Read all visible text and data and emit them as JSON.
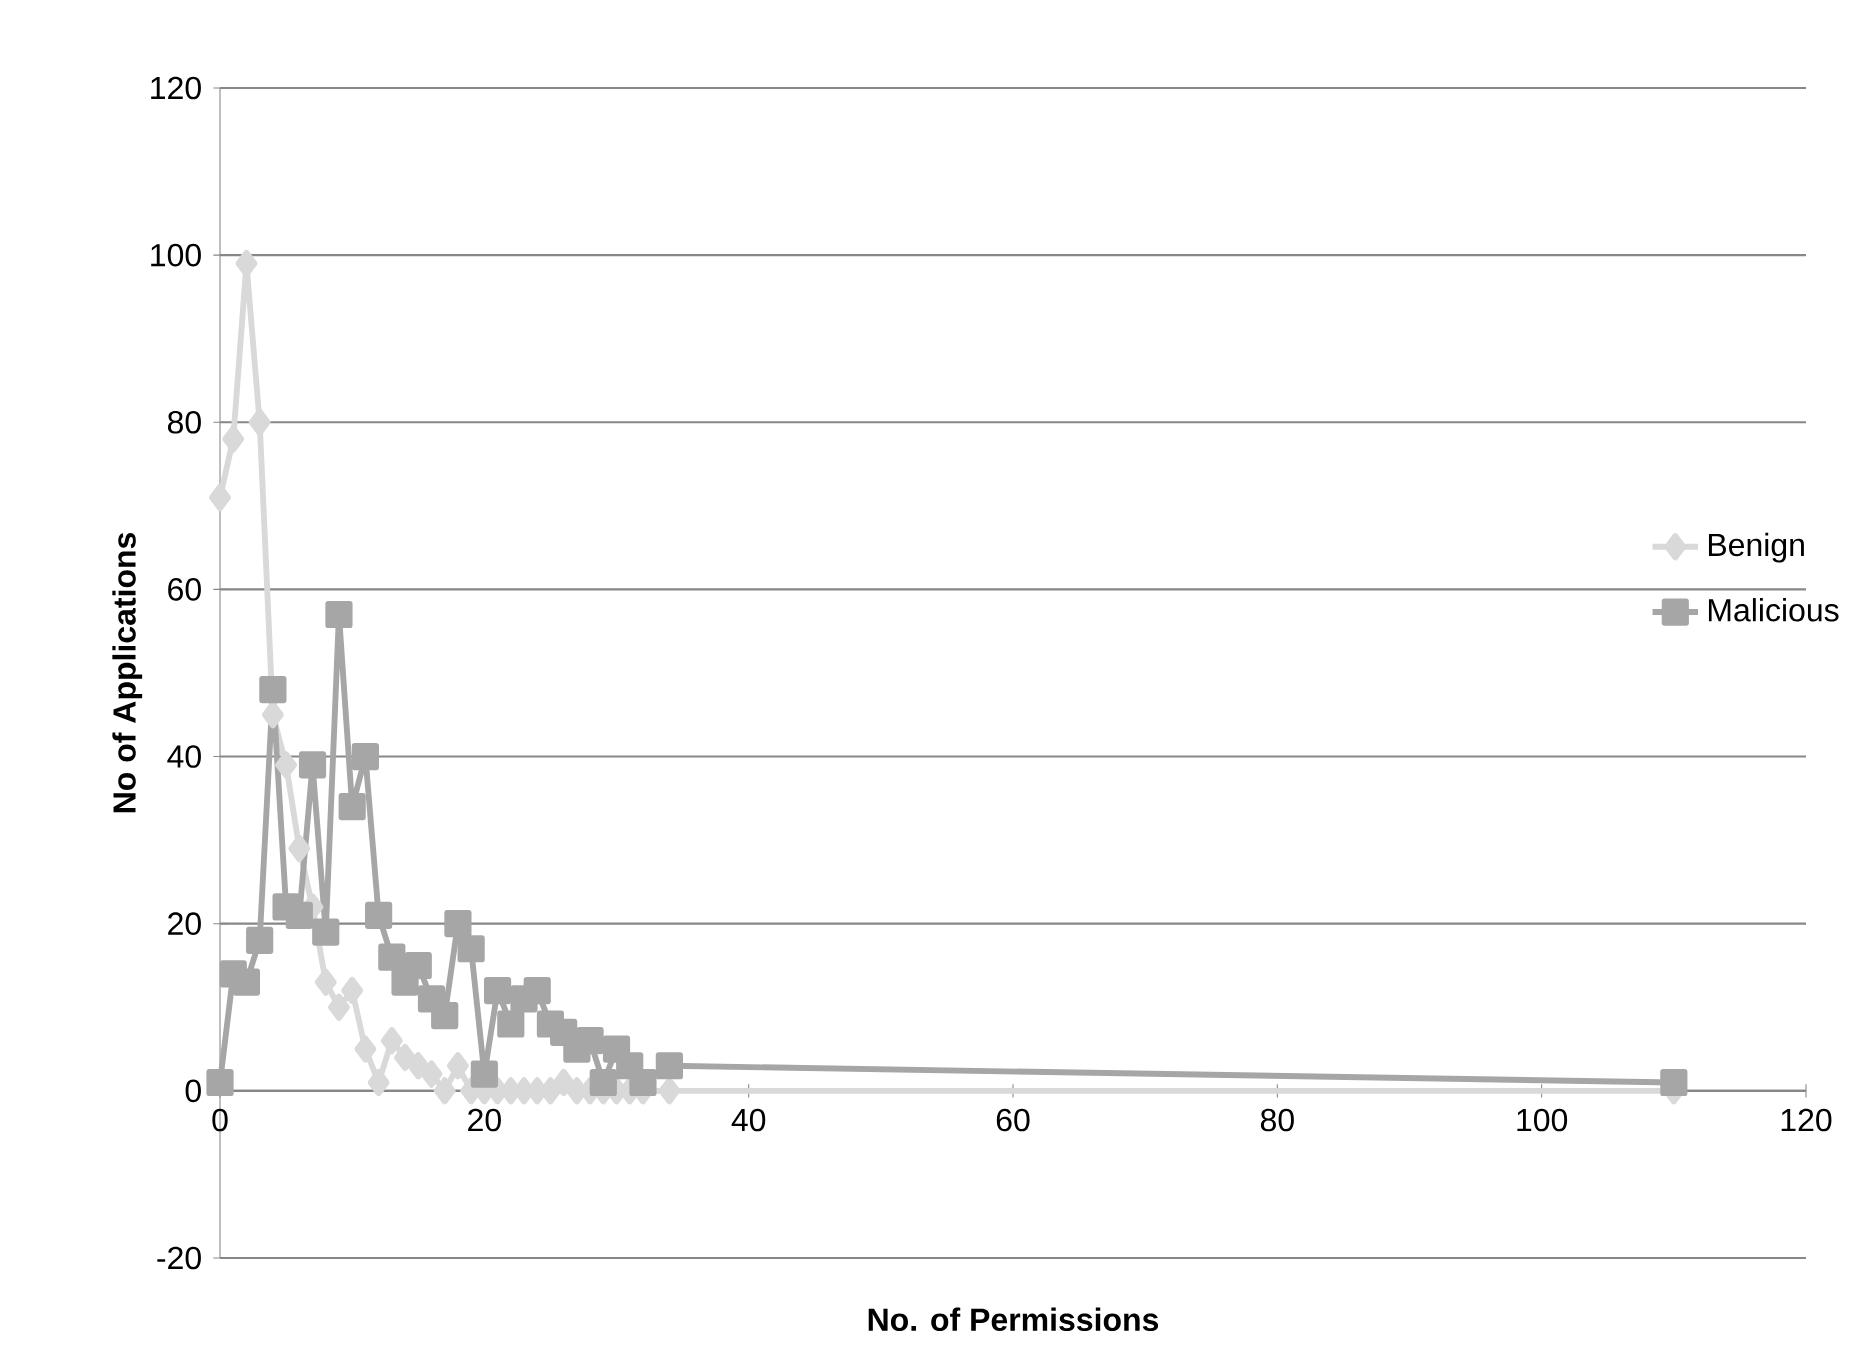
{
  "chart_data": {
    "type": "line",
    "xlabel": "No. of Permissions",
    "ylabel": "No of Applications",
    "xlim": [
      0,
      120
    ],
    "ylim": [
      -20,
      120
    ],
    "xticks": [
      0,
      20,
      40,
      60,
      80,
      100,
      120
    ],
    "yticks": [
      -20,
      0,
      20,
      40,
      60,
      80,
      100,
      120
    ],
    "grid": "y",
    "legend": "right",
    "line_style": "solid",
    "series": [
      {
        "name": "Benign",
        "color": "#d9d9d9",
        "marker": "diamond",
        "x": [
          0,
          1,
          2,
          3,
          4,
          5,
          6,
          7,
          8,
          9,
          10,
          11,
          12,
          13,
          14,
          15,
          16,
          17,
          18,
          19,
          20,
          21,
          22,
          23,
          24,
          25,
          26,
          27,
          28,
          29,
          30,
          31,
          32,
          34,
          110
        ],
        "values": [
          71,
          78,
          99,
          80,
          45,
          39,
          29,
          22,
          13,
          10,
          12,
          5,
          1,
          6,
          4,
          3,
          2,
          0,
          3,
          0,
          0,
          0,
          0,
          0,
          0,
          0,
          1,
          0,
          0,
          0,
          0,
          0,
          0,
          0,
          0
        ]
      },
      {
        "name": "Malicious",
        "color": "#a6a6a6",
        "marker": "square",
        "x": [
          0,
          1,
          2,
          3,
          4,
          5,
          6,
          7,
          8,
          9,
          10,
          11,
          12,
          13,
          14,
          15,
          16,
          17,
          18,
          19,
          20,
          21,
          22,
          23,
          24,
          25,
          26,
          27,
          28,
          29,
          30,
          31,
          32,
          34,
          110
        ],
        "values": [
          1,
          14,
          13,
          18,
          48,
          22,
          21,
          39,
          19,
          57,
          34,
          40,
          21,
          16,
          13,
          15,
          11,
          9,
          20,
          17,
          2,
          12,
          8,
          11,
          12,
          8,
          7,
          5,
          6,
          1,
          5,
          3,
          1,
          3,
          1
        ]
      }
    ]
  }
}
